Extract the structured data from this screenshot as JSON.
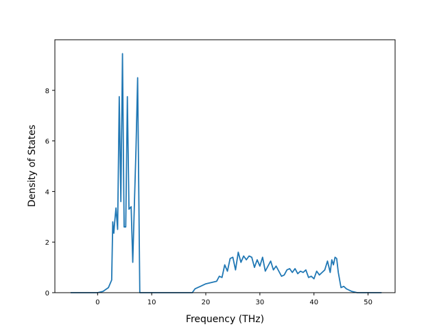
{
  "chart_data": {
    "type": "line",
    "title": "",
    "xlabel": "Frequency (THz)",
    "ylabel": "Density of States",
    "xlim": [
      -7.9,
      55.0
    ],
    "ylim": [
      0,
      10.0
    ],
    "xticks": [
      0,
      10,
      20,
      30,
      40,
      50
    ],
    "xtick_labels": [
      "0",
      "10",
      "20",
      "30",
      "40",
      "50"
    ],
    "yticks": [
      0,
      2,
      4,
      6,
      8
    ],
    "ytick_labels": [
      "0",
      "2",
      "4",
      "6",
      "8"
    ],
    "grid": false,
    "legend": "none",
    "series": [
      {
        "color": "#1f77b4",
        "x": [
          -5.0,
          0.0,
          1.0,
          2.0,
          2.6,
          2.8,
          3.0,
          3.2,
          3.4,
          3.7,
          4.0,
          4.3,
          4.6,
          4.9,
          5.2,
          5.5,
          5.8,
          6.2,
          6.5,
          6.8,
          7.1,
          7.4,
          7.8,
          8.0,
          8.3,
          10.0,
          15.0,
          17.5,
          18.0,
          18.5,
          19.0,
          20.0,
          21.0,
          22.0,
          22.5,
          23.0,
          23.5,
          24.0,
          24.5,
          25.0,
          25.5,
          26.0,
          26.5,
          27.0,
          27.5,
          28.0,
          28.5,
          29.0,
          29.5,
          30.0,
          30.5,
          31.0,
          31.5,
          32.0,
          32.5,
          33.0,
          33.5,
          34.0,
          34.5,
          35.0,
          35.5,
          36.0,
          36.5,
          37.0,
          37.5,
          38.0,
          38.5,
          39.0,
          39.5,
          40.0,
          40.5,
          41.0,
          41.5,
          42.0,
          42.5,
          43.0,
          43.3,
          43.6,
          43.9,
          44.2,
          44.5,
          45.0,
          45.5,
          46.0,
          47.0,
          48.0,
          49.0,
          50.0,
          52.5
        ],
        "y": [
          0.0,
          0.0,
          0.05,
          0.2,
          0.5,
          2.8,
          2.35,
          2.9,
          3.35,
          2.5,
          7.75,
          3.6,
          9.45,
          2.6,
          2.6,
          7.75,
          3.3,
          3.4,
          1.2,
          3.5,
          5.7,
          8.5,
          0.0,
          0.0,
          0.0,
          0.0,
          0.0,
          0.0,
          0.15,
          0.2,
          0.25,
          0.35,
          0.4,
          0.45,
          0.65,
          0.6,
          1.1,
          0.85,
          1.35,
          1.4,
          0.9,
          1.6,
          1.2,
          1.45,
          1.3,
          1.45,
          1.4,
          1.0,
          1.3,
          1.05,
          1.4,
          0.85,
          1.05,
          1.25,
          0.9,
          1.05,
          0.85,
          0.65,
          0.7,
          0.9,
          0.95,
          0.8,
          0.95,
          0.75,
          0.85,
          0.8,
          0.9,
          0.6,
          0.65,
          0.55,
          0.85,
          0.7,
          0.8,
          0.9,
          1.25,
          0.8,
          1.3,
          1.1,
          1.4,
          1.35,
          0.8,
          0.2,
          0.25,
          0.15,
          0.05,
          0.0,
          0.0,
          0.0,
          0.0
        ]
      }
    ]
  }
}
